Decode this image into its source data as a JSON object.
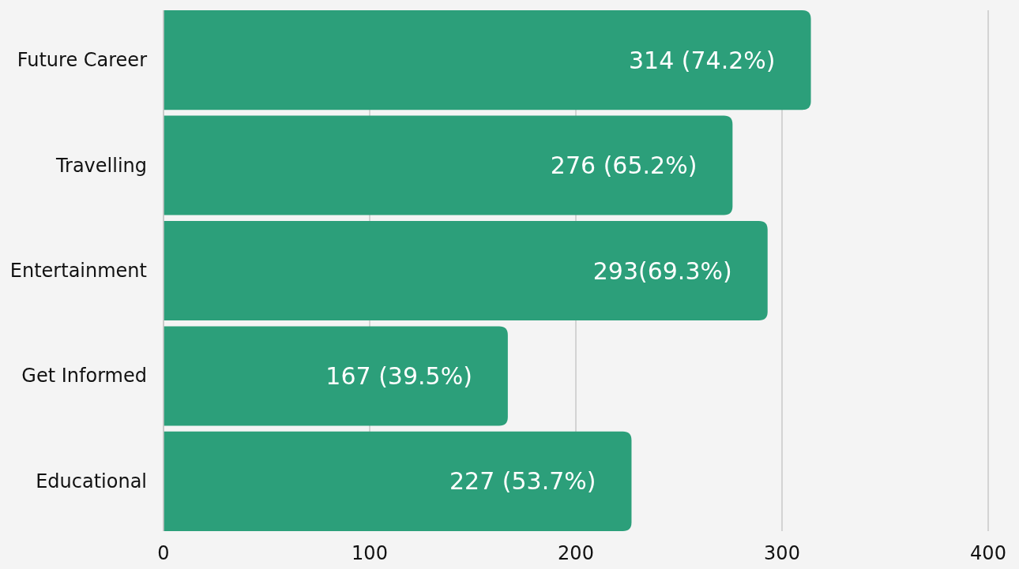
{
  "chart_data": {
    "type": "bar",
    "orientation": "horizontal",
    "categories": [
      "Future Career",
      "Travelling",
      "Entertainment",
      "Get Informed",
      "Educational"
    ],
    "values": [
      314,
      276,
      293,
      167,
      227
    ],
    "value_labels": [
      "314 (74.2%)",
      "276 (65.2%)",
      "293(69.3%)",
      "167 (39.5%)",
      "227 (53.7%)"
    ],
    "color": "#2c9f7a",
    "xlim": [
      0,
      400
    ],
    "xticks": [
      0,
      100,
      200,
      300,
      400
    ],
    "grid": "x"
  }
}
